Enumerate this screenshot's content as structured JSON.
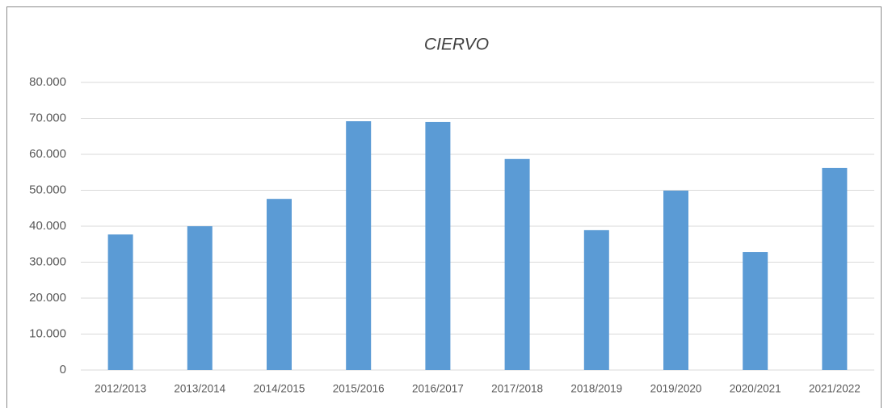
{
  "chart_data": {
    "type": "bar",
    "title": "CIERVO",
    "categories": [
      "2012/2013",
      "2013/2014",
      "2014/2015",
      "2015/2016",
      "2016/2017",
      "2017/2018",
      "2018/2019",
      "2019/2020",
      "2020/2021",
      "2021/2022"
    ],
    "values": [
      37700,
      40000,
      47600,
      69200,
      69000,
      58700,
      38900,
      49900,
      32800,
      56200
    ],
    "color": "#5b9bd5",
    "ylim": [
      0,
      80000
    ],
    "yticks": [
      0,
      {
        "value": 10000,
        "label": "10.000"
      },
      {
        "value": 20000,
        "label": "20.000"
      },
      {
        "value": 30000,
        "label": "30.000"
      },
      {
        "value": 40000,
        "label": "40.000"
      },
      {
        "value": 50000,
        "label": "50.000"
      },
      {
        "value": 60000,
        "label": "60.000"
      },
      {
        "value": 70000,
        "label": "70.000"
      },
      {
        "value": 80000,
        "label": "80.000"
      }
    ],
    "grid": true
  }
}
